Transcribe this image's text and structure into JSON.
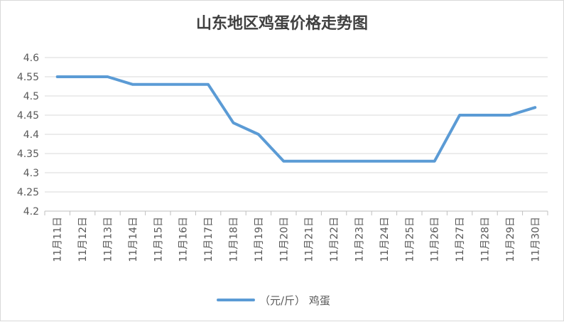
{
  "chart_data": {
    "type": "line",
    "title": "山东地区鸡蛋价格走势图",
    "categories": [
      "11月11日",
      "11月12日",
      "11月13日",
      "11月14日",
      "11月15日",
      "11月16日",
      "11月17日",
      "11月18日",
      "11月19日",
      "11月20日",
      "11月21日",
      "11月22日",
      "11月23日",
      "11月24日",
      "11月25日",
      "11月26日",
      "11月27日",
      "11月28日",
      "11月29日",
      "11月30日"
    ],
    "series": [
      {
        "name": "（元/斤） 鸡蛋",
        "values": [
          4.55,
          4.55,
          4.55,
          4.53,
          4.53,
          4.53,
          4.53,
          4.43,
          4.4,
          4.33,
          4.33,
          4.33,
          4.33,
          4.33,
          4.33,
          4.33,
          4.45,
          4.45,
          4.45,
          4.47
        ]
      }
    ],
    "yticks": [
      "4.2",
      "4.25",
      "4.3",
      "4.35",
      "4.4",
      "4.45",
      "4.5",
      "4.55",
      "4.6"
    ],
    "ylim": [
      4.2,
      4.6
    ],
    "grid": true,
    "legend": "bottom",
    "line_color": "#5b9bd5",
    "grid_color": "#d9d9d9"
  }
}
